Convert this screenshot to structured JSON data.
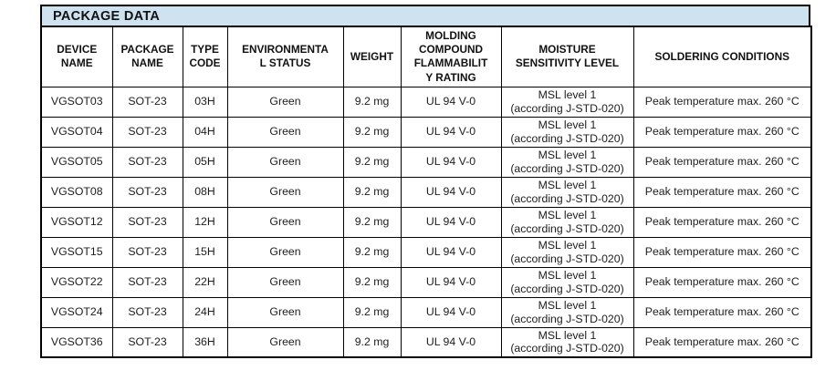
{
  "title": "PACKAGE DATA",
  "colors": {
    "title_bar_bg": "#cfe2f0",
    "border": "#000000",
    "text": "#1d1d1f",
    "page_bg": "#ffffff"
  },
  "table": {
    "columns": [
      {
        "key": "device-name",
        "label": "DEVICE\nNAME"
      },
      {
        "key": "package-name",
        "label": "PACKAGE\nNAME"
      },
      {
        "key": "type-code",
        "label": "TYPE\nCODE"
      },
      {
        "key": "environmental-status",
        "label": "ENVIRONMENTA\nL STATUS"
      },
      {
        "key": "weight",
        "label": "WEIGHT"
      },
      {
        "key": "molding-compound-flammability-rating",
        "label": "MOLDING\nCOMPOUND\nFLAMMABILIT\nY RATING"
      },
      {
        "key": "moisture-sensitivity-level",
        "label": "MOISTURE\nSENSITIVITY LEVEL"
      },
      {
        "key": "soldering-conditions",
        "label": "SOLDERING CONDITIONS"
      }
    ],
    "rows": [
      [
        "VGSOT03",
        "SOT-23",
        "03H",
        "Green",
        "9.2 mg",
        "UL 94 V-0",
        "MSL level 1\n(according J-STD-020)",
        "Peak temperature max. 260 °C"
      ],
      [
        "VGSOT04",
        "SOT-23",
        "04H",
        "Green",
        "9.2 mg",
        "UL 94 V-0",
        "MSL level 1\n(according J-STD-020)",
        "Peak temperature max. 260 °C"
      ],
      [
        "VGSOT05",
        "SOT-23",
        "05H",
        "Green",
        "9.2 mg",
        "UL 94 V-0",
        "MSL level 1\n(according J-STD-020)",
        "Peak temperature max. 260 °C"
      ],
      [
        "VGSOT08",
        "SOT-23",
        "08H",
        "Green",
        "9.2 mg",
        "UL 94 V-0",
        "MSL level 1\n(according J-STD-020)",
        "Peak temperature max. 260 °C"
      ],
      [
        "VGSOT12",
        "SOT-23",
        "12H",
        "Green",
        "9.2 mg",
        "UL 94 V-0",
        "MSL level 1\n(according J-STD-020)",
        "Peak temperature max. 260 °C"
      ],
      [
        "VGSOT15",
        "SOT-23",
        "15H",
        "Green",
        "9.2 mg",
        "UL 94 V-0",
        "MSL level 1\n(according J-STD-020)",
        "Peak temperature max. 260 °C"
      ],
      [
        "VGSOT22",
        "SOT-23",
        "22H",
        "Green",
        "9.2 mg",
        "UL 94 V-0",
        "MSL level 1\n(according J-STD-020)",
        "Peak temperature max. 260 °C"
      ],
      [
        "VGSOT24",
        "SOT-23",
        "24H",
        "Green",
        "9.2 mg",
        "UL 94 V-0",
        "MSL level 1\n(according J-STD-020)",
        "Peak temperature max. 260 °C"
      ],
      [
        "VGSOT36",
        "SOT-23",
        "36H",
        "Green",
        "9.2 mg",
        "UL 94 V-0",
        "MSL level 1\n(according J-STD-020)",
        "Peak temperature max. 260 °C"
      ]
    ]
  }
}
